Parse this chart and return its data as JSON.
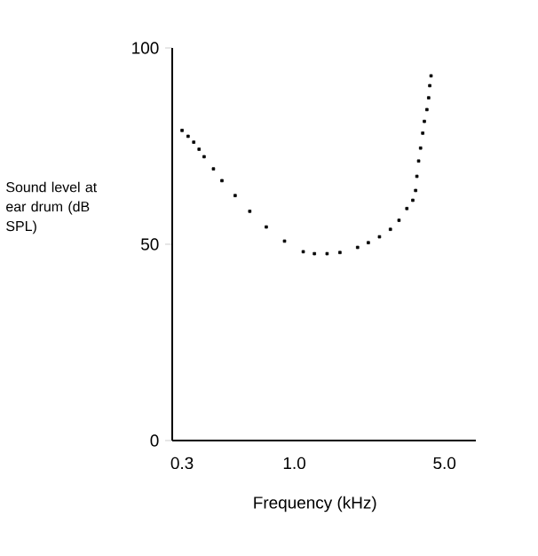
{
  "chart_data": {
    "type": "scatter",
    "xlabel": "Frequency (kHz)",
    "ylabel": "Sound level at ear drum (dB SPL)",
    "log": "x",
    "marker": "square",
    "color": "#000000",
    "x": [
      0.3,
      0.32,
      0.34,
      0.36,
      0.38,
      0.42,
      0.46,
      0.53,
      0.62,
      0.74,
      0.9,
      1.1,
      1.24,
      1.42,
      1.63,
      1.97,
      2.21,
      2.49,
      2.8,
      3.07,
      3.34,
      3.56,
      3.67,
      3.72,
      3.79,
      3.87,
      3.96,
      4.03,
      4.14,
      4.22,
      4.27,
      4.33
    ],
    "values": [
      79.0,
      77.5,
      76.0,
      74.2,
      72.3,
      69.2,
      66.2,
      62.4,
      58.4,
      54.4,
      50.8,
      48.1,
      47.6,
      47.6,
      47.9,
      49.2,
      50.4,
      51.9,
      53.8,
      56.1,
      59.1,
      61.2,
      63.7,
      67.3,
      71.2,
      74.5,
      78.3,
      81.3,
      84.3,
      87.3,
      90.4,
      92.9
    ],
    "xlim": [
      0.27,
      7.0
    ],
    "ylim": [
      0,
      100
    ],
    "xticks": [
      0.3,
      {
        "value": 1.0,
        "label": "1.0"
      },
      {
        "value": 5.0,
        "label": "5.0"
      }
    ],
    "yticks": [
      0,
      50,
      100
    ]
  }
}
